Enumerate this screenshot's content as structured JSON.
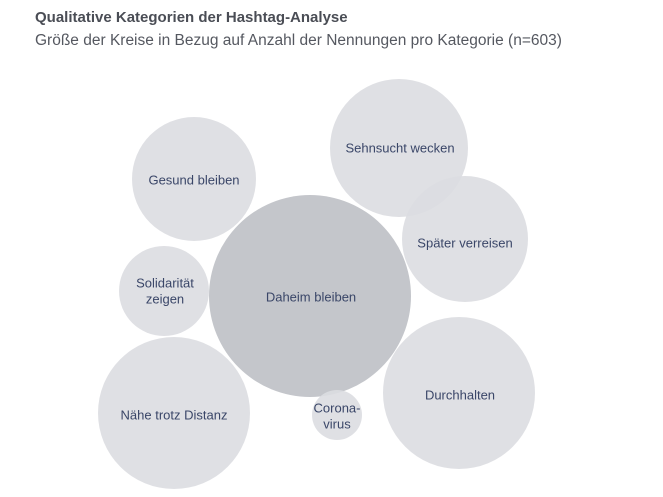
{
  "header": {
    "title": "Qualitative Kategorien der Hashtag-Analyse",
    "subtitle": "Größe der Kreise in Bezug auf Anzahl der Nennungen pro Kategorie (n=603)"
  },
  "chart_data": {
    "type": "bubble",
    "title": "Qualitative Kategorien der Hashtag-Analyse",
    "subtitle": "Größe der Kreise in Bezug auf Anzahl der Nennungen pro Kategorie (n=603)",
    "n": 603,
    "categories": [
      {
        "label": "Daheim bleiben",
        "lines": [
          "Daheim bleiben"
        ],
        "shade": "dark"
      },
      {
        "label": "Durchhalten",
        "lines": [
          "Durchhalten"
        ],
        "shade": "light"
      },
      {
        "label": "Nähe trotz Distanz",
        "lines": [
          "Nähe trotz Distanz"
        ],
        "shade": "light"
      },
      {
        "label": "Sehnsucht wecken",
        "lines": [
          "Sehnsucht wecken"
        ],
        "shade": "light"
      },
      {
        "label": "Später verreisen",
        "lines": [
          "Später verreisen"
        ],
        "shade": "light"
      },
      {
        "label": "Gesund bleiben",
        "lines": [
          "Gesund bleiben"
        ],
        "shade": "light"
      },
      {
        "label": "Solidarität zeigen",
        "lines": [
          "Solidarität",
          "zeigen"
        ],
        "shade": "light"
      },
      {
        "label": "Coronavirus",
        "lines": [
          "Corona-",
          "virus"
        ],
        "shade": "light"
      }
    ],
    "colors": {
      "dark": "#c4c6cb",
      "light": "#dcdde1",
      "text": "#3a4668"
    }
  }
}
